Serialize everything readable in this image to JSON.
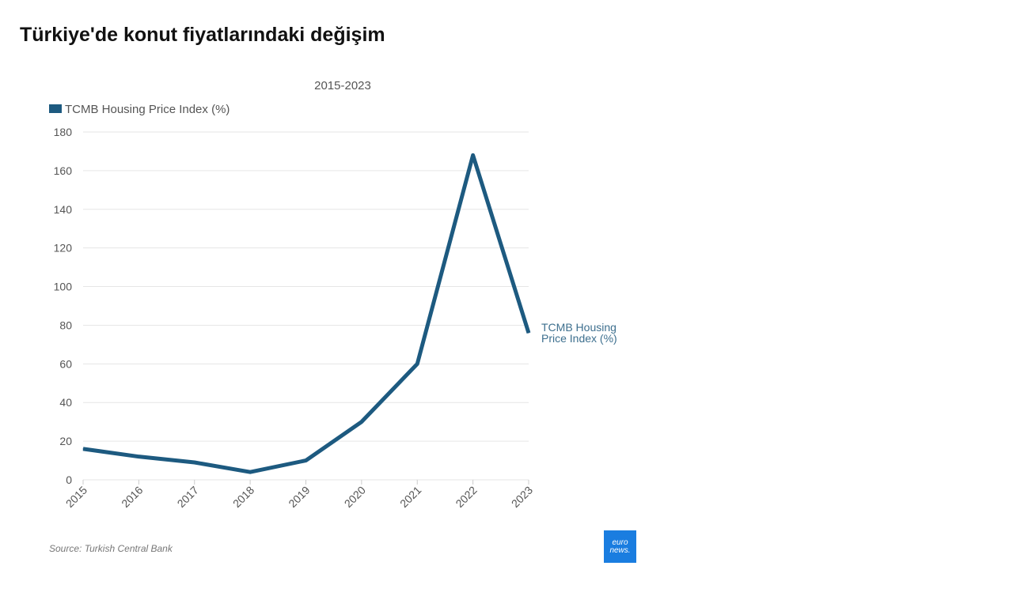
{
  "title": "Türkiye'de konut fiyatlarındaki değişim",
  "subtitle": "2015-2023",
  "source": "Source: Turkish Central Bank",
  "logo": {
    "line1": "euro",
    "line2": "news."
  },
  "colors": {
    "series": "#1d5a80",
    "logo_bg": "#1a7de0",
    "grid": "#e6e6e6"
  },
  "chart_data": {
    "type": "line",
    "title": "Türkiye'de konut fiyatlarındaki değişim",
    "subtitle": "2015-2023",
    "xlabel": "",
    "ylabel": "",
    "categories": [
      "2015",
      "2016",
      "2017",
      "2018",
      "2019",
      "2020",
      "2021",
      "2022",
      "2023"
    ],
    "series": [
      {
        "name": "TCMB Housing Price Index (%)",
        "values": [
          16,
          12,
          9,
          4,
          10,
          30,
          60,
          168,
          76
        ]
      }
    ],
    "end_label_lines": [
      "TCMB Housing",
      "Price Index (%)"
    ],
    "ylim": [
      0,
      180
    ],
    "yticks": [
      0,
      20,
      40,
      60,
      80,
      100,
      120,
      140,
      160,
      180
    ],
    "grid": true,
    "legend": "top-left"
  }
}
